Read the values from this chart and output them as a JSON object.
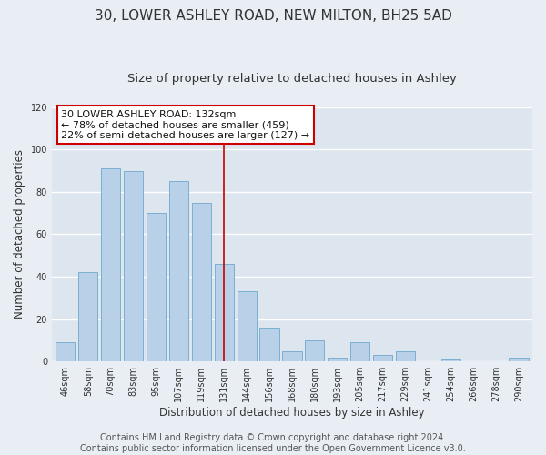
{
  "title": "30, LOWER ASHLEY ROAD, NEW MILTON, BH25 5AD",
  "subtitle": "Size of property relative to detached houses in Ashley",
  "xlabel": "Distribution of detached houses by size in Ashley",
  "ylabel": "Number of detached properties",
  "bar_labels": [
    "46sqm",
    "58sqm",
    "70sqm",
    "83sqm",
    "95sqm",
    "107sqm",
    "119sqm",
    "131sqm",
    "144sqm",
    "156sqm",
    "168sqm",
    "180sqm",
    "193sqm",
    "205sqm",
    "217sqm",
    "229sqm",
    "241sqm",
    "254sqm",
    "266sqm",
    "278sqm",
    "290sqm"
  ],
  "bar_values": [
    9,
    42,
    91,
    90,
    70,
    85,
    75,
    46,
    33,
    16,
    5,
    10,
    2,
    9,
    3,
    5,
    0,
    1,
    0,
    0,
    2
  ],
  "bar_color": "#b8d0e8",
  "bar_edge_color": "#7aaed0",
  "highlight_index": 7,
  "highlight_line_color": "#cc0000",
  "annotation_box_line1": "30 LOWER ASHLEY ROAD: 132sqm",
  "annotation_box_line2": "← 78% of detached houses are smaller (459)",
  "annotation_box_line3": "22% of semi-detached houses are larger (127) →",
  "annotation_box_color": "#ffffff",
  "annotation_box_edge_color": "#cc0000",
  "ylim": [
    0,
    120
  ],
  "yticks": [
    0,
    20,
    40,
    60,
    80,
    100,
    120
  ],
  "footer_line1": "Contains HM Land Registry data © Crown copyright and database right 2024.",
  "footer_line2": "Contains public sector information licensed under the Open Government Licence v3.0.",
  "bg_color": "#e8eef4",
  "plot_bg_color": "#dde6ef",
  "grid_color": "#ffffff",
  "title_fontsize": 11,
  "subtitle_fontsize": 9.5,
  "tick_fontsize": 7,
  "ylabel_fontsize": 8.5,
  "xlabel_fontsize": 8.5,
  "annotation_fontsize": 8,
  "footer_fontsize": 7
}
